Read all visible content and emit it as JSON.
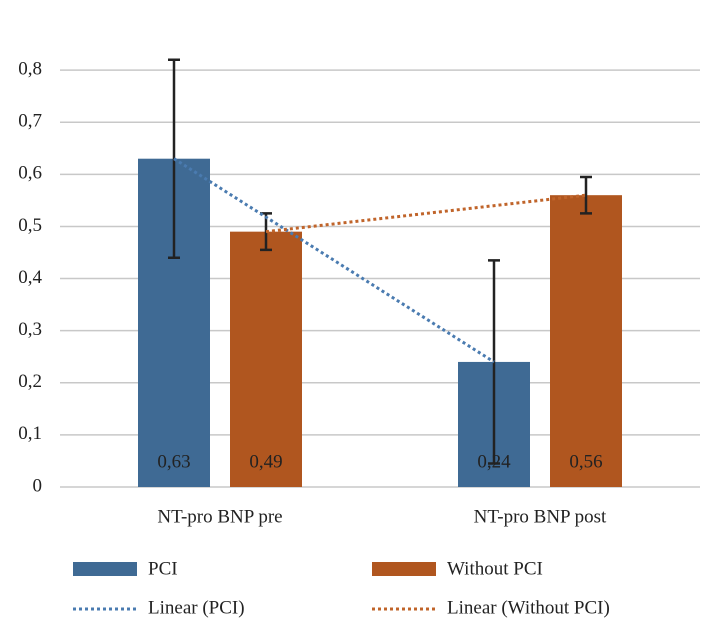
{
  "chart_data": {
    "type": "bar",
    "categories": [
      "NT-pro BNP pre",
      "NT-pro BNP post"
    ],
    "series": [
      {
        "name": "PCI",
        "color": "#3f6a94",
        "values": [
          0.63,
          0.24
        ],
        "value_labels": [
          "0,63",
          "0,24"
        ],
        "errors": [
          0.19,
          0.195
        ]
      },
      {
        "name": "Without PCI",
        "color": "#b0561f",
        "values": [
          0.49,
          0.56
        ],
        "value_labels": [
          "0,49",
          "0,56"
        ],
        "errors": [
          0.035,
          0.035
        ]
      }
    ],
    "trendlines": [
      {
        "name": "Linear (PCI)",
        "series": 0,
        "color": "#4a7bb0"
      },
      {
        "name": "Linear (Without PCI)",
        "series": 1,
        "color": "#c0642a"
      }
    ],
    "ylim": [
      0,
      0.9
    ],
    "yticks": [
      0,
      {
        "value": 0.1,
        "label": "0,1"
      },
      {
        "value": 0.2,
        "label": "0,2"
      },
      {
        "value": 0.3,
        "label": "0,3"
      },
      {
        "value": 0.4,
        "label": "0,4"
      },
      {
        "value": 0.5,
        "label": "0,5"
      },
      {
        "value": 0.6,
        "label": "0,6"
      },
      {
        "value": 0.7,
        "label": "0,7"
      },
      {
        "value": 0.8,
        "label": "0,8"
      }
    ],
    "grid": true
  }
}
